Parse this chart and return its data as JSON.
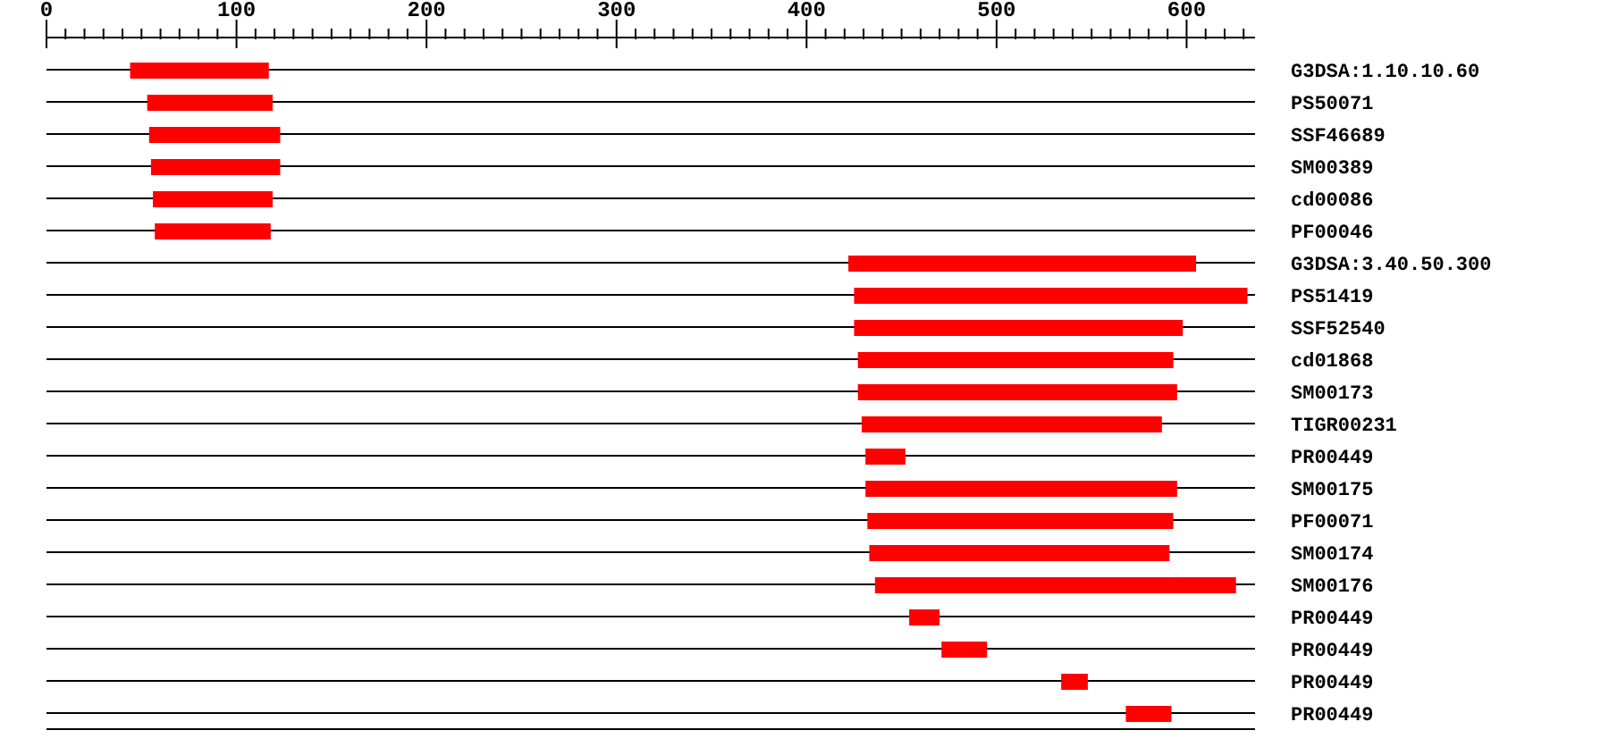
{
  "chart_data": {
    "type": "bar",
    "orientation": "horizontal",
    "grid": "y",
    "color": "#ff0000",
    "categories": [
      "G3DSA:1.10.10.60",
      "PS50071",
      "SSF46689",
      "SM00389",
      "cd00086",
      "PF00046",
      "G3DSA:3.40.50.300",
      "PS51419",
      "SSF52540",
      "cd01868",
      "SM00173",
      "TIGR00231",
      "PR00449",
      "SM00175",
      "PF00071",
      "SM00174",
      "SM00176",
      "PR00449",
      "PR00449",
      "PR00449",
      "PR00449"
    ],
    "base": [
      44,
      53,
      54,
      55,
      56,
      57,
      422,
      425,
      425,
      427,
      427,
      429,
      431,
      431,
      432,
      433,
      436,
      454,
      471,
      534,
      568
    ],
    "values": [
      73,
      66,
      69,
      68,
      63,
      61,
      183,
      207,
      173,
      166,
      168,
      158,
      21,
      164,
      161,
      158,
      190,
      16,
      24,
      14,
      24
    ],
    "xlim": [
      0,
      636
    ],
    "xticks": [
      0,
      {
        "value": 10,
        "label": null
      },
      {
        "value": 20,
        "label": null
      },
      {
        "value": 30,
        "label": null
      },
      {
        "value": 40,
        "label": null
      },
      {
        "value": 50,
        "label": null
      },
      {
        "value": 60,
        "label": null
      },
      {
        "value": 70,
        "label": null
      },
      {
        "value": 80,
        "label": null
      },
      {
        "value": 90,
        "label": null
      },
      100,
      {
        "value": 110,
        "label": null
      },
      {
        "value": 120,
        "label": null
      },
      {
        "value": 130,
        "label": null
      },
      {
        "value": 140,
        "label": null
      },
      {
        "value": 150,
        "label": null
      },
      {
        "value": 160,
        "label": null
      },
      {
        "value": 170,
        "label": null
      },
      {
        "value": 180,
        "label": null
      },
      {
        "value": 190,
        "label": null
      },
      200,
      {
        "value": 210,
        "label": null
      },
      {
        "value": 220,
        "label": null
      },
      {
        "value": 230,
        "label": null
      },
      {
        "value": 240,
        "label": null
      },
      {
        "value": 250,
        "label": null
      },
      {
        "value": 260,
        "label": null
      },
      {
        "value": 270,
        "label": null
      },
      {
        "value": 280,
        "label": null
      },
      {
        "value": 290,
        "label": null
      },
      300,
      {
        "value": 310,
        "label": null
      },
      {
        "value": 320,
        "label": null
      },
      {
        "value": 330,
        "label": null
      },
      {
        "value": 340,
        "label": null
      },
      {
        "value": 350,
        "label": null
      },
      {
        "value": 360,
        "label": null
      },
      {
        "value": 370,
        "label": null
      },
      {
        "value": 380,
        "label": null
      },
      {
        "value": 390,
        "label": null
      },
      400,
      {
        "value": 410,
        "label": null
      },
      {
        "value": 420,
        "label": null
      },
      {
        "value": 430,
        "label": null
      },
      {
        "value": 440,
        "label": null
      },
      {
        "value": 450,
        "label": null
      },
      {
        "value": 460,
        "label": null
      },
      {
        "value": 470,
        "label": null
      },
      {
        "value": 480,
        "label": null
      },
      {
        "value": 490,
        "label": null
      },
      500,
      {
        "value": 510,
        "label": null
      },
      {
        "value": 520,
        "label": null
      },
      {
        "value": 530,
        "label": null
      },
      {
        "value": 540,
        "label": null
      },
      {
        "value": 550,
        "label": null
      },
      {
        "value": 560,
        "label": null
      },
      {
        "value": 570,
        "label": null
      },
      {
        "value": 580,
        "label": null
      },
      {
        "value": 590,
        "label": null
      },
      600,
      {
        "value": 610,
        "label": null
      },
      {
        "value": 620,
        "label": null
      },
      {
        "value": 630,
        "label": null
      }
    ]
  }
}
